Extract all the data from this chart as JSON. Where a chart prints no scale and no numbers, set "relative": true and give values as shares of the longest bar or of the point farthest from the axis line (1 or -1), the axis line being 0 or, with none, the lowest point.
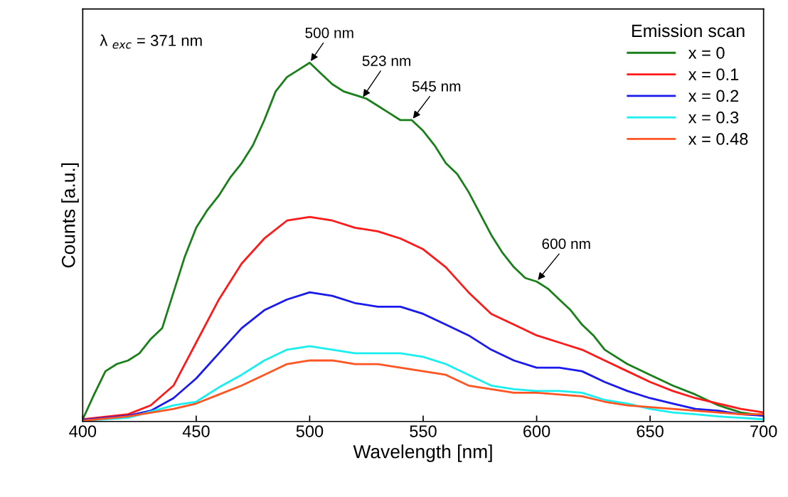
{
  "chart_data": {
    "type": "line",
    "relative": true,
    "xlabel": "Wavelength [nm]",
    "ylabel": "Counts [a.u.]",
    "legend_title": "Emission scan",
    "legend": "top right",
    "grid": false,
    "xlim": [
      400,
      700
    ],
    "xticks": [
      400,
      450,
      500,
      550,
      600,
      650,
      700
    ],
    "annotations": [
      "λ $_{exc}$ = 371 nm",
      {
        "text": "500 nm",
        "x": 500,
        "y": 1.0
      },
      {
        "text": "523 nm",
        "x": 523,
        "y": 0.9
      },
      {
        "text": "545 nm",
        "x": 545,
        "y": 0.84
      },
      {
        "text": "600 nm",
        "x": 600,
        "y": 0.39
      }
    ],
    "series": [
      {
        "name": "x = 0",
        "color": "#1a7f1a",
        "x": [
          400,
          405,
          410,
          415,
          420,
          425,
          430,
          435,
          440,
          445,
          450,
          455,
          460,
          465,
          470,
          475,
          480,
          485,
          490,
          495,
          500,
          505,
          510,
          515,
          520,
          525,
          530,
          535,
          540,
          545,
          550,
          555,
          560,
          565,
          570,
          575,
          580,
          585,
          590,
          595,
          600,
          605,
          610,
          615,
          620,
          625,
          630,
          640,
          650,
          660,
          670,
          680,
          690,
          700
        ],
        "values": [
          0.006,
          0.075,
          0.14,
          0.16,
          0.17,
          0.19,
          0.23,
          0.26,
          0.36,
          0.46,
          0.54,
          0.59,
          0.63,
          0.68,
          0.72,
          0.77,
          0.84,
          0.92,
          0.96,
          0.98,
          1.0,
          0.97,
          0.94,
          0.92,
          0.91,
          0.9,
          0.88,
          0.86,
          0.84,
          0.84,
          0.81,
          0.77,
          0.72,
          0.69,
          0.64,
          0.58,
          0.52,
          0.47,
          0.43,
          0.4,
          0.39,
          0.37,
          0.34,
          0.31,
          0.27,
          0.24,
          0.2,
          0.16,
          0.13,
          0.1,
          0.075,
          0.045,
          0.025,
          0.016
        ]
      },
      {
        "name": "x = 0.1",
        "color": "#ff1a1a",
        "x": [
          400,
          420,
          430,
          440,
          450,
          460,
          470,
          480,
          490,
          500,
          510,
          520,
          530,
          540,
          550,
          560,
          570,
          580,
          590,
          600,
          610,
          620,
          630,
          640,
          650,
          660,
          670,
          680,
          690,
          700
        ],
        "values": [
          0.006,
          0.02,
          0.045,
          0.1,
          0.22,
          0.34,
          0.44,
          0.51,
          0.56,
          0.57,
          0.56,
          0.54,
          0.53,
          0.51,
          0.48,
          0.43,
          0.36,
          0.3,
          0.27,
          0.24,
          0.22,
          0.2,
          0.17,
          0.14,
          0.11,
          0.085,
          0.065,
          0.05,
          0.035,
          0.025
        ]
      },
      {
        "name": "x = 0.2",
        "color": "#1a1aee",
        "x": [
          400,
          420,
          430,
          440,
          450,
          460,
          470,
          480,
          490,
          500,
          510,
          520,
          530,
          540,
          550,
          560,
          570,
          580,
          590,
          600,
          610,
          620,
          630,
          640,
          650,
          660,
          670,
          680,
          690,
          700
        ],
        "values": [
          0.004,
          0.016,
          0.03,
          0.065,
          0.12,
          0.19,
          0.26,
          0.31,
          0.34,
          0.36,
          0.35,
          0.33,
          0.32,
          0.32,
          0.3,
          0.27,
          0.24,
          0.2,
          0.17,
          0.15,
          0.15,
          0.14,
          0.11,
          0.085,
          0.065,
          0.05,
          0.035,
          0.03,
          0.02,
          0.016
        ]
      },
      {
        "name": "x = 0.3",
        "color": "#1aeeee",
        "x": [
          400,
          420,
          440,
          450,
          460,
          470,
          480,
          490,
          500,
          510,
          520,
          530,
          540,
          550,
          560,
          570,
          580,
          590,
          600,
          610,
          620,
          630,
          640,
          650,
          660,
          670,
          680,
          690,
          700
        ],
        "values": [
          0.002,
          0.01,
          0.045,
          0.055,
          0.095,
          0.13,
          0.17,
          0.2,
          0.21,
          0.2,
          0.19,
          0.19,
          0.19,
          0.18,
          0.16,
          0.13,
          0.1,
          0.09,
          0.085,
          0.085,
          0.08,
          0.06,
          0.05,
          0.035,
          0.025,
          0.02,
          0.014,
          0.01,
          0.006
        ]
      },
      {
        "name": "x = 0.48",
        "color": "#ff5522",
        "x": [
          400,
          420,
          440,
          450,
          460,
          470,
          480,
          490,
          500,
          510,
          520,
          530,
          540,
          550,
          560,
          570,
          580,
          590,
          600,
          610,
          620,
          630,
          640,
          650,
          660,
          670,
          680,
          690,
          700
        ],
        "values": [
          0.002,
          0.014,
          0.035,
          0.05,
          0.075,
          0.1,
          0.13,
          0.16,
          0.17,
          0.17,
          0.16,
          0.16,
          0.15,
          0.14,
          0.13,
          0.1,
          0.09,
          0.08,
          0.08,
          0.075,
          0.07,
          0.055,
          0.045,
          0.04,
          0.035,
          0.03,
          0.025,
          0.02,
          0.02
        ]
      }
    ]
  }
}
